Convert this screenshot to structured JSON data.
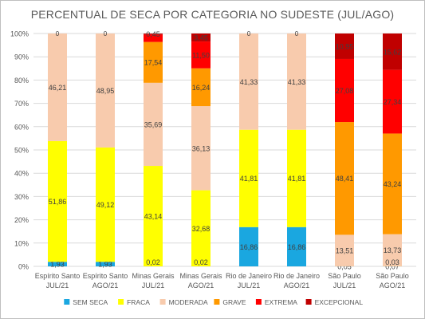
{
  "chart_data": {
    "type": "bar",
    "stacked": true,
    "title": "PERCENTUAL DE SECA POR CATEGORIA NO SUDESTE (JUL/AGO)",
    "categories": [
      [
        "Espírito Santo",
        "JUL/21"
      ],
      [
        "Espírito Santo",
        "AGO/21"
      ],
      [
        "Minas Gerais",
        "JUL/21"
      ],
      [
        "Minas Gerais",
        "AGO/21"
      ],
      [
        "Rio de Janeiro",
        "JUL/21"
      ],
      [
        "Rio de Janeiro",
        "AGO/21"
      ],
      [
        "São Paulo",
        "JUL/21"
      ],
      [
        "São Paulo",
        "AGO/21"
      ]
    ],
    "ylim": [
      0,
      100
    ],
    "ytick_labels": [
      "0%",
      "10%",
      "20%",
      "30%",
      "40%",
      "50%",
      "60%",
      "70%",
      "80%",
      "90%",
      "100%"
    ],
    "grid": true,
    "legend_position": "bottom",
    "series": [
      {
        "name": "SEM SECA",
        "color": "#1aa7e0",
        "values": [
          1.93,
          1.93,
          0,
          0,
          16.86,
          16.86,
          0,
          0
        ],
        "labels": [
          "1,93",
          "1,93",
          "",
          "",
          "16,86",
          "16,86",
          "",
          ""
        ]
      },
      {
        "name": "FRACA",
        "color": "#ffff00",
        "values": [
          51.86,
          49.12,
          43.14,
          32.68,
          41.81,
          41.81,
          0.05,
          0.07
        ],
        "labels": [
          "51,86",
          "49,12",
          "43,14",
          "32,68",
          "41,81",
          "41,81",
          "0,05",
          "0,07"
        ]
      },
      {
        "name": "MODERADA",
        "color": "#f8cbad",
        "values": [
          46.21,
          48.95,
          35.69,
          36.13,
          41.33,
          41.33,
          13.51,
          13.73
        ],
        "labels": [
          "46,21",
          "48,95",
          "35,69",
          "36,13",
          "41,33",
          "41,33",
          "13,51",
          "13,73"
        ]
      },
      {
        "name": "GRAVE",
        "color": "#ff9900",
        "values": [
          0,
          0,
          17.54,
          16.24,
          0,
          0,
          48.41,
          43.24
        ],
        "labels": [
          "",
          "",
          "17,54",
          "16,24",
          "",
          "",
          "48,41",
          "43,24"
        ]
      },
      {
        "name": "EXTREMA",
        "color": "#ff0000",
        "values": [
          0,
          0,
          3.15,
          11.5,
          0,
          0,
          27.08,
          27.34
        ],
        "labels": [
          "",
          "",
          "",
          "11,50",
          "",
          "",
          "27,08",
          "27,34"
        ]
      },
      {
        "name": "EXCEPCIONAL",
        "color": "#c00000",
        "values": [
          0,
          0,
          0.45,
          3.45,
          0,
          0,
          10.95,
          15.62
        ],
        "labels": [
          "",
          "",
          "0,45",
          "3,45",
          "",
          "",
          "10,95",
          "15,62"
        ]
      }
    ],
    "baseline_labels": [
      "",
      "",
      "0,02",
      "0,02",
      "",
      "",
      "",
      "0,03"
    ],
    "top_labels": [
      "0",
      "0",
      "",
      "",
      "0",
      "0",
      "",
      ""
    ]
  }
}
